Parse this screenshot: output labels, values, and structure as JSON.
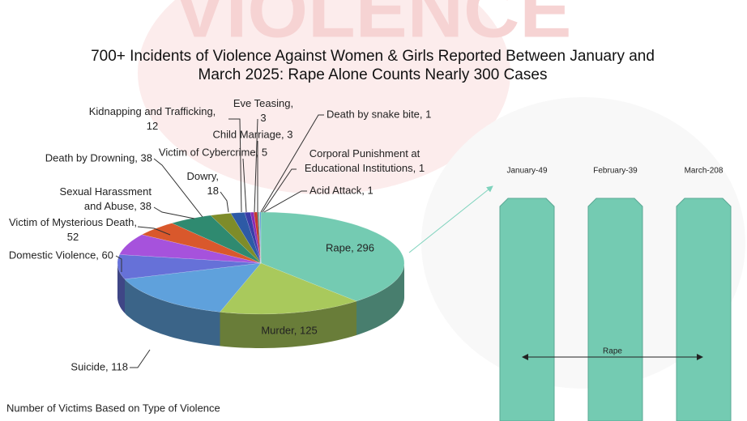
{
  "background_text": "VIOLENCE",
  "chart_data": {
    "type": "pie3d",
    "title": "700+ Incidents of Violence Against Women & Girls Reported Between January and\nMarch 2025: Rape Alone Counts Nearly 300 Cases",
    "caption": "Number of Victims Based on Type of Violence",
    "values": [
      296,
      125,
      118,
      60,
      52,
      38,
      38,
      18,
      12,
      5,
      3,
      3,
      1,
      1,
      1
    ],
    "value_labels": [
      "Rape, 296",
      "Murder, 125",
      "Suicide, 118",
      "Domestic Violence, 60",
      "Victim of Mysterious Death,\n52",
      "Sexual Harassment\nand Abuse, 38",
      "Death by Drowning, 38",
      "Dowry,\n18",
      "Kidnapping and Trafficking,\n12",
      "Victim of Cybercrime, 5",
      "Eve Teasing,\n3",
      "Child Marriage, 3",
      "Death by snake bite, 1",
      "Corporal Punishment at\nEducational Institutions, 1",
      "Acid Attack, 1"
    ],
    "colors": [
      "#74cbb2",
      "#a9c95c",
      "#5fa1dc",
      "#6671d8",
      "#a652dc",
      "#d9582c",
      "#2f8a70",
      "#7e8c2a",
      "#2d5aa6",
      "#3b3ca8",
      "#8a2cb4",
      "#c53a2e",
      "#1f6f5f",
      "#bbbbbb",
      "#5b9bd5"
    ]
  },
  "breakdown": {
    "columns": [
      "January-49",
      "February-39",
      "March-208"
    ],
    "label": "Rape"
  }
}
